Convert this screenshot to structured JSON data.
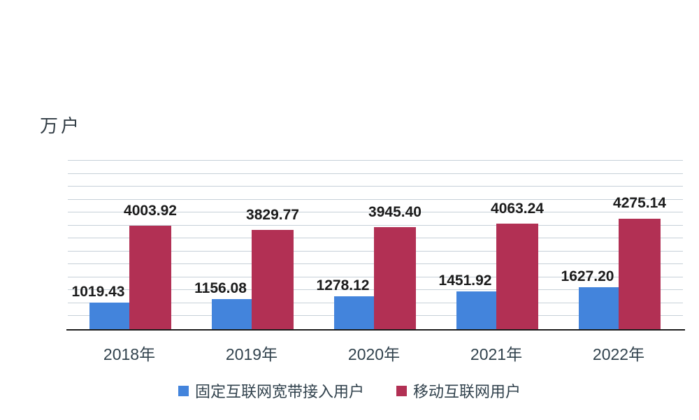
{
  "chart_data": {
    "type": "bar",
    "title": "",
    "xlabel": "",
    "ylabel": "万户",
    "categories": [
      "2018年",
      "2019年",
      "2020年",
      "2021年",
      "2022年"
    ],
    "series": [
      {
        "name": "固定互联网宽带接入用户",
        "color": "#4384dc",
        "values": [
          1019.43,
          1156.08,
          1278.12,
          1451.92,
          1627.2
        ],
        "labels": [
          "1019.43",
          "1156.08",
          "1278.12",
          "1451.92",
          "1627.20"
        ]
      },
      {
        "name": "移动互联网用户",
        "color": "#b23054",
        "values": [
          4003.92,
          3829.77,
          3945.4,
          4063.24,
          4275.14
        ],
        "labels": [
          "4003.92",
          "3829.77",
          "3945.40",
          "4063.24",
          "4275.14"
        ]
      }
    ],
    "ylim": [
      0,
      6500
    ],
    "gridline_step": 500,
    "grid": true,
    "value_labels_shown": true,
    "legend_position": "bottom",
    "colors": {
      "gridline": "#c6d0d8",
      "axis": "#1c1c1c",
      "value_label_text": "#1b1b1b",
      "tick_text": "#31424d"
    }
  }
}
